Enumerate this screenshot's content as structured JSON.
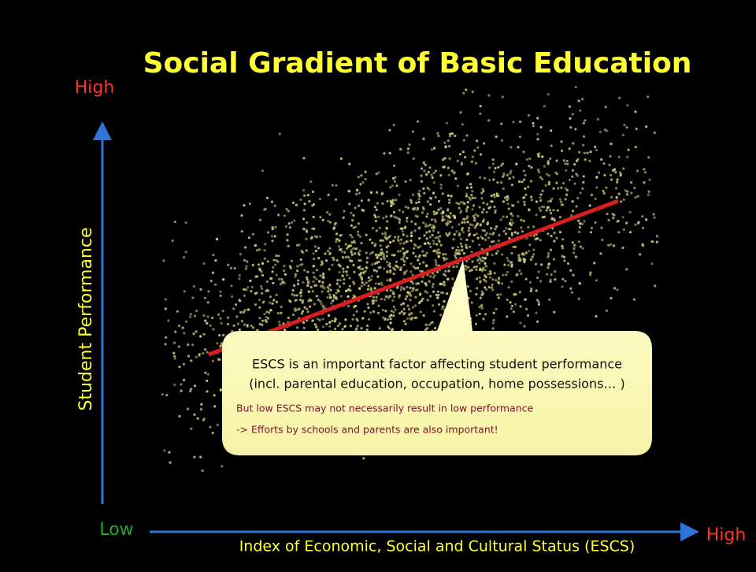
{
  "slide": {
    "title": "Social Gradient of Basic Education",
    "y_axis": {
      "label": "Student Performance",
      "high": "High",
      "low": "Low"
    },
    "x_axis": {
      "label": "Index of Economic, Social and Cultural Status (ESCS)",
      "high": "High"
    },
    "callout": {
      "lines": [
        "ESCS is an important factor affecting student performance",
        "(incl. parental education, occupation, home possessions… )"
      ],
      "notes": [
        "But low ESCS may not necessarily result in low performance",
        "-> Efforts by schools and parents are also important!"
      ]
    }
  }
}
